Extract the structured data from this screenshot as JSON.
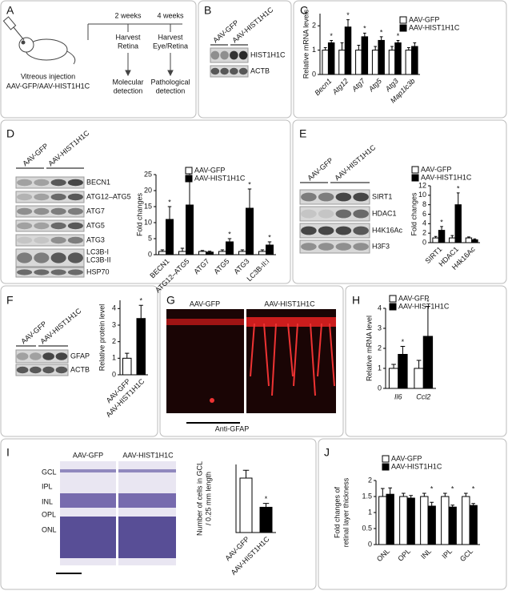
{
  "figure": {
    "panel_labels": [
      "A",
      "B",
      "C",
      "D",
      "E",
      "F",
      "G",
      "H",
      "I",
      "J"
    ],
    "panel_a": {
      "texts": [
        "Vitreous injection",
        "AAV-GFP/AAV-HIST1H1C",
        "2 weeks",
        "4 weeks",
        "Harvest",
        "Retina",
        "Harvest",
        "Eye/Retina",
        "Molecular",
        "detection",
        "Pathological",
        "detection"
      ]
    },
    "panel_b": {
      "groups": [
        "AAV-GFP",
        "AAV-HIST1H1C"
      ],
      "bands": [
        "HIST1H1C",
        "ACTB"
      ]
    },
    "panel_d": {
      "groups": [
        "AAV-GFP",
        "AAV-HIST1H1C"
      ],
      "bands": [
        "BECN1",
        "ATG12–ATG5",
        "ATG7",
        "ATG5",
        "ATG3",
        "LC3B-I",
        "LC3B-II",
        "HSP70"
      ]
    },
    "panel_e": {
      "groups": [
        "AAV-GFP",
        "AAV-HIST1H1C"
      ],
      "bands": [
        "SIRT1",
        "HDAC1",
        "H4K16Ac",
        "H3F3"
      ]
    },
    "panel_f": {
      "groups": [
        "AAV-GFP",
        "AAV-HIST1H1C"
      ],
      "bands": [
        "GFAP",
        "ACTB"
      ]
    },
    "panel_g": {
      "groups": [
        "AAV-GFP",
        "AAV-HIST1H1C"
      ],
      "stain": "Anti-GFAP"
    },
    "panel_i": {
      "groups": [
        "AAV-GFP",
        "AAV-HIST1H1C"
      ],
      "layers": [
        "GCL",
        "IPL",
        "INL",
        "OPL",
        "ONL"
      ]
    }
  },
  "chart_data": [
    {
      "type": "bar",
      "ylabel": "Relative mRNA levels",
      "categories": [
        "Becn1",
        "Atg12",
        "Atg7",
        "Atg5",
        "Atg3",
        "Map1lc3b"
      ],
      "series": [
        {
          "name": "AAV-GFP",
          "color": "#ffffff",
          "values": [
            1,
            1,
            1,
            1,
            1,
            1
          ],
          "errors": [
            0.1,
            0.3,
            0.2,
            0.15,
            0.15,
            0.1
          ]
        },
        {
          "name": "AAV-HIST1H1C",
          "color": "#000000",
          "values": [
            1.3,
            1.95,
            1.55,
            1.4,
            1.3,
            1.15
          ],
          "errors": [
            0.1,
            0.3,
            0.15,
            0.15,
            0.1,
            0.15
          ]
        }
      ],
      "significance": [
        "*",
        "*",
        "*",
        "*",
        "*",
        null
      ],
      "ylim": [
        0,
        2.5
      ],
      "yticks": [
        0,
        1,
        2
      ],
      "legend": "upper right"
    },
    {
      "type": "bar",
      "ylabel": "Fold changes",
      "categories": [
        "BECN1",
        "ATG12–ATG5",
        "ATG7",
        "ATG5",
        "ATG3",
        "LC3B-II:I"
      ],
      "series": [
        {
          "name": "AAV-GFP",
          "color": "#ffffff",
          "values": [
            1,
            1,
            1,
            1,
            1,
            1
          ],
          "errors": [
            0.5,
            1,
            0.3,
            0.5,
            0.5,
            0.5
          ]
        },
        {
          "name": "AAV-HIST1H1C",
          "color": "#000000",
          "values": [
            11,
            15.5,
            0.8,
            4,
            14.5,
            3
          ],
          "errors": [
            4,
            8,
            0.3,
            1,
            6,
            1
          ]
        }
      ],
      "significance": [
        "*",
        "*",
        null,
        "*",
        "*",
        "*"
      ],
      "ylim": [
        0,
        25
      ],
      "yticks": [
        0,
        5,
        10,
        15,
        20,
        25
      ],
      "legend": "upper left"
    },
    {
      "type": "bar",
      "ylabel": "Fold changes",
      "categories": [
        "SIRT1",
        "HDAC1",
        "H4k16Ac"
      ],
      "series": [
        {
          "name": "AAV-GFP",
          "color": "#ffffff",
          "values": [
            1,
            1,
            1
          ],
          "errors": [
            0.3,
            0.5,
            0.2
          ]
        },
        {
          "name": "AAV-HIST1H1C",
          "color": "#000000",
          "values": [
            2.6,
            8,
            0.6
          ],
          "errors": [
            0.8,
            2.5,
            0.2
          ]
        }
      ],
      "significance": [
        "*",
        "*",
        null
      ],
      "ylim": [
        0,
        12
      ],
      "yticks": [
        0,
        2,
        4,
        6,
        8,
        10,
        12
      ],
      "legend": "upper left"
    },
    {
      "type": "bar",
      "ylabel": "Relative protein level",
      "categories": [
        "AAV-GFP",
        "AAV-HIST1H1C"
      ],
      "values": [
        1,
        3.4
      ],
      "errors": [
        0.3,
        0.8
      ],
      "colors": [
        "#ffffff",
        "#000000"
      ],
      "significance": [
        null,
        "*"
      ],
      "ylim": [
        0,
        4.5
      ],
      "yticks": [
        0,
        1,
        2,
        3,
        4
      ]
    },
    {
      "type": "bar",
      "ylabel": "Relative mRNA level",
      "categories": [
        "Il6",
        "Ccl2"
      ],
      "series": [
        {
          "name": "AAV-GFP",
          "color": "#ffffff",
          "values": [
            1,
            1
          ],
          "errors": [
            0.2,
            0.4
          ]
        },
        {
          "name": "AAV-HIST1H1C",
          "color": "#000000",
          "values": [
            1.7,
            2.6
          ],
          "errors": [
            0.4,
            1.5
          ]
        }
      ],
      "significance": [
        "*",
        "*"
      ],
      "ylim": [
        0,
        4
      ],
      "yticks": [
        0,
        1,
        2,
        3,
        4
      ],
      "legend": "upper left"
    },
    {
      "type": "bar",
      "ylabel": [
        "Number of cells in GCL",
        "/ 0.25 mm length"
      ],
      "categories": [
        "AAV-GFP",
        "AAV-HIST1H1C"
      ],
      "values": [
        28,
        13
      ],
      "errors": [
        4,
        2
      ],
      "colors": [
        "#ffffff",
        "#000000"
      ],
      "significance": [
        null,
        "*"
      ],
      "ylim": [
        0,
        35
      ]
    },
    {
      "type": "bar",
      "ylabel": [
        "Fold changes of",
        "retinal layer thickness"
      ],
      "categories": [
        "ONL",
        "OPL",
        "INL",
        "IPL",
        "GCL"
      ],
      "series": [
        {
          "name": "AAV-GFP",
          "color": "#ffffff",
          "values": [
            1.5,
            1.5,
            1.5,
            1.5,
            1.5
          ],
          "errors": [
            0.25,
            0.1,
            0.1,
            0.1,
            0.1
          ]
        },
        {
          "name": "AAV-HIST1H1C",
          "color": "#000000",
          "values": [
            1.57,
            1.45,
            1.2,
            1.17,
            1.22
          ],
          "errors": [
            0.2,
            0.08,
            0.12,
            0.06,
            0.06
          ]
        }
      ],
      "significance": [
        null,
        null,
        "*",
        "*",
        "*"
      ],
      "ylim": [
        0,
        2
      ],
      "yticks": [
        0,
        0.5,
        1,
        1.5,
        2
      ],
      "legend": "upper left"
    }
  ]
}
